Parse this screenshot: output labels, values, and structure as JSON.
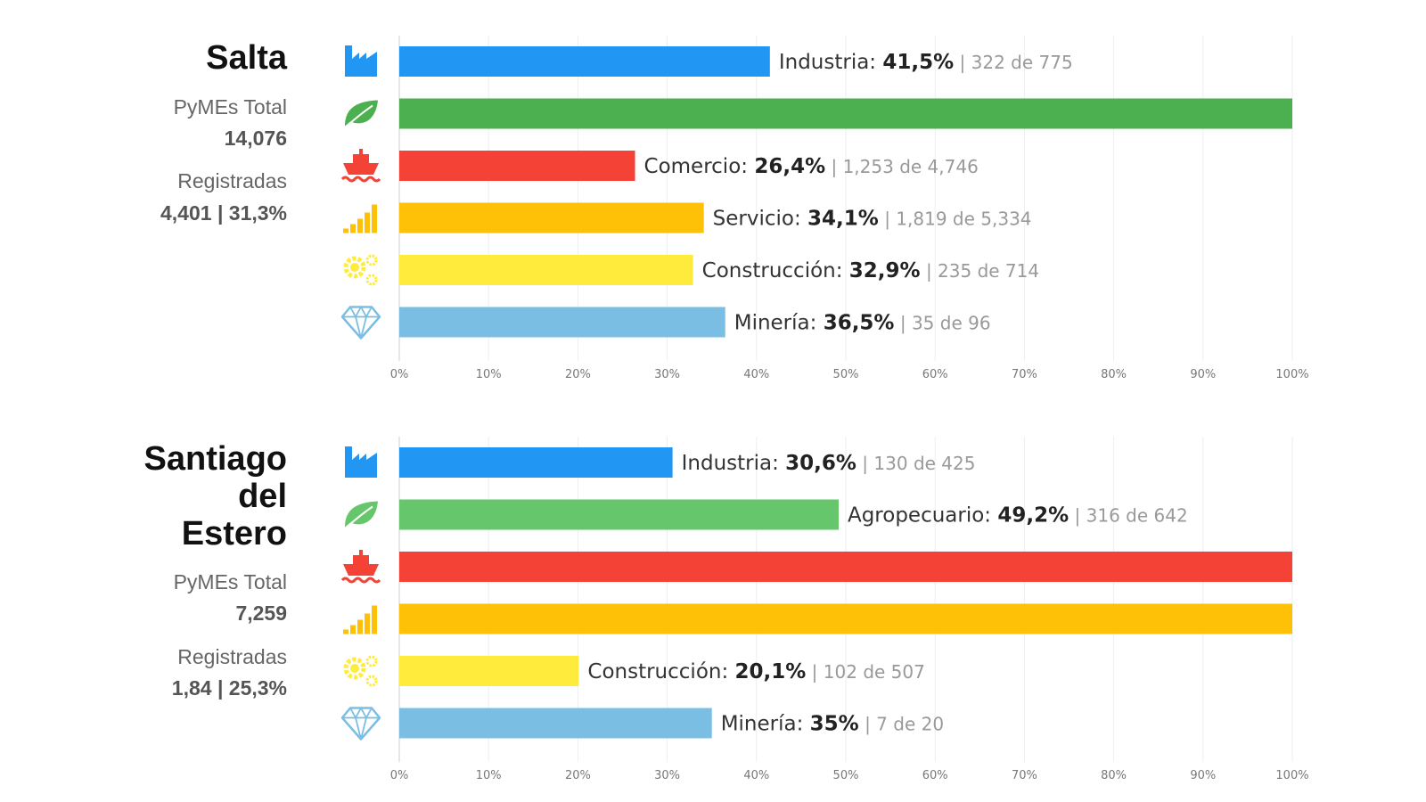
{
  "colors": {
    "industria": "#2196f3",
    "agropecuario_full": "#4caf50",
    "agropecuario": "#66c66b",
    "comercio": "#f44336",
    "servicio": "#ffc107",
    "construccion": "#ffeb3b",
    "mineria": "#7abfe3"
  },
  "icons": [
    "factory-icon",
    "leaf-icon",
    "ship-icon",
    "signal-bars-icon",
    "gears-icon",
    "diamond-icon"
  ],
  "provinces": [
    {
      "name": "Salta",
      "pymes_label": "PyMEs Total",
      "pymes_value": "14,076",
      "reg_label": "Registradas",
      "reg_value": "4,401 | 31,3%"
    },
    {
      "name_lines": [
        "Santiago",
        "del",
        "Estero"
      ],
      "pymes_label": "PyMEs Total",
      "pymes_value": "7,259",
      "reg_label": "Registradas",
      "reg_value": "1,84 | 25,3%"
    }
  ],
  "chart_data": [
    {
      "type": "bar",
      "orientation": "horizontal",
      "xlim": [
        0,
        100
      ],
      "ticks": [
        "0%",
        "10%",
        "20%",
        "30%",
        "40%",
        "50%",
        "60%",
        "70%",
        "80%",
        "90%",
        "100%"
      ],
      "grid": true,
      "bars": [
        {
          "category": "Industria",
          "value": 41.5,
          "pct_text": "41,5%",
          "detail": "322 de 775",
          "color": "#2196f3",
          "icon": "factory-icon"
        },
        {
          "category": "",
          "value": 100,
          "pct_text": "",
          "detail": "",
          "color": "#4caf50",
          "icon": "leaf-icon"
        },
        {
          "category": "Comercio",
          "value": 26.4,
          "pct_text": "26,4%",
          "detail": "1,253 de 4,746",
          "color": "#f44336",
          "icon": "ship-icon"
        },
        {
          "category": "Servicio",
          "value": 34.1,
          "pct_text": "34,1%",
          "detail": "1,819 de 5,334",
          "color": "#ffc107",
          "icon": "signal-bars-icon"
        },
        {
          "category": "Construcción",
          "value": 32.9,
          "pct_text": "32,9%",
          "detail": "235 de 714",
          "color": "#ffeb3b",
          "icon": "gears-icon"
        },
        {
          "category": "Minería",
          "value": 36.5,
          "pct_text": "36,5%",
          "detail": "35 de 96",
          "color": "#7abfe3",
          "icon": "diamond-icon"
        }
      ]
    },
    {
      "type": "bar",
      "orientation": "horizontal",
      "xlim": [
        0,
        100
      ],
      "ticks": [
        "0%",
        "10%",
        "20%",
        "30%",
        "40%",
        "50%",
        "60%",
        "70%",
        "80%",
        "90%",
        "100%"
      ],
      "grid": true,
      "bars": [
        {
          "category": "Industria",
          "value": 30.6,
          "pct_text": "30,6%",
          "detail": "130 de 425",
          "color": "#2196f3",
          "icon": "factory-icon"
        },
        {
          "category": "Agropecuario",
          "value": 49.2,
          "pct_text": "49,2%",
          "detail": "316 de 642",
          "color": "#66c66b",
          "icon": "leaf-icon"
        },
        {
          "category": "",
          "value": 100,
          "pct_text": "",
          "detail": "",
          "color": "#f44336",
          "icon": "ship-icon"
        },
        {
          "category": "",
          "value": 100,
          "pct_text": "",
          "detail": "",
          "color": "#ffc107",
          "icon": "signal-bars-icon"
        },
        {
          "category": "Construcción",
          "value": 20.1,
          "pct_text": "20,1%",
          "detail": "102 de 507",
          "color": "#ffeb3b",
          "icon": "gears-icon"
        },
        {
          "category": "Minería",
          "value": 35,
          "pct_text": "35%",
          "detail": "7 de 20",
          "color": "#7abfe3",
          "icon": "diamond-icon"
        }
      ]
    }
  ]
}
